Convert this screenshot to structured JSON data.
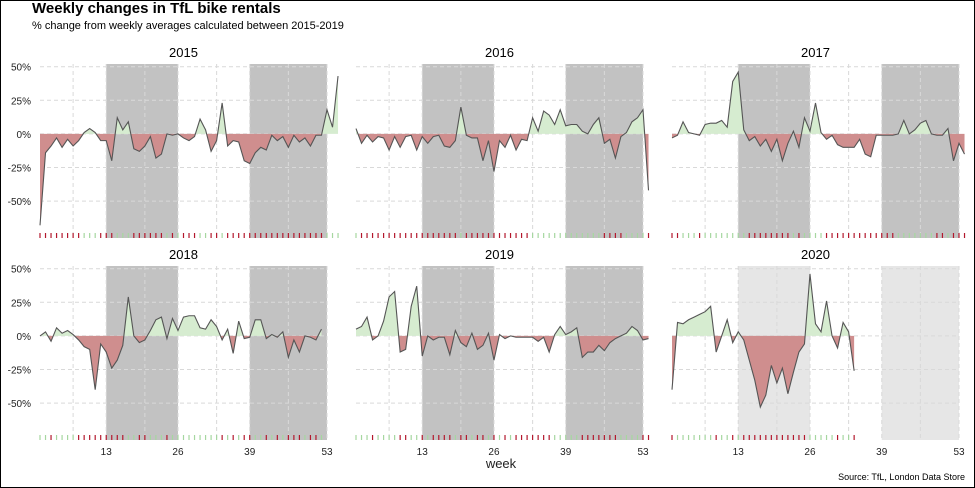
{
  "title": "Weekly changes in TfL bike rentals",
  "subtitle": "% change from weekly averages calculated between 2015-2019",
  "caption": "Source: TfL, London Data Store",
  "chart_data": {
    "type": "area",
    "xlabel": "week",
    "ylabel": "",
    "x_ticks": [
      13,
      26,
      39,
      53
    ],
    "y_ticks": [
      50,
      25,
      0,
      -25,
      -50
    ],
    "y_tick_labels": [
      "50%",
      "25%",
      "0%",
      "-25%",
      "-50%"
    ],
    "xlim": [
      1,
      53
    ],
    "ylim": [
      -70,
      52
    ],
    "grid": true,
    "shaded_week_ranges": [
      [
        13,
        26
      ],
      [
        39,
        53
      ]
    ],
    "colors": {
      "positive_fill": "#d6ecd0",
      "negative_fill": "#cf8e8e",
      "line": "#555555",
      "shade_dark": "#c2c2c2",
      "shade_light": "#e6e6e6",
      "rug_positive": "#a6d7a0",
      "rug_negative": "#b3182d",
      "grid": "#d9d9d9"
    },
    "panels": [
      {
        "year": "2015",
        "shade": "dark",
        "values": [
          -68,
          -14,
          -9,
          -3,
          -10,
          -4,
          -9,
          -5,
          1,
          4,
          1,
          -5,
          -5,
          -20,
          12,
          3,
          9,
          -11,
          -13,
          -9,
          -2,
          -18,
          -15,
          0,
          -1,
          0,
          -3,
          -5,
          -2,
          11,
          3,
          -13,
          -5,
          23,
          -9,
          -5,
          -6,
          -20,
          -22,
          -14,
          -10,
          -12,
          -1,
          -5,
          -2,
          -10,
          -1,
          -6,
          -3,
          -9,
          -1,
          -1,
          18,
          5,
          43
        ]
      },
      {
        "year": "2016",
        "shade": "dark",
        "values": [
          4,
          -7,
          -1,
          -6,
          -2,
          -3,
          -12,
          -2,
          -10,
          -2,
          -1,
          -12,
          -2,
          -7,
          -2,
          -1,
          -9,
          -10,
          -5,
          20,
          -1,
          -3,
          -3,
          -20,
          -5,
          -28,
          -5,
          -10,
          -1,
          -12,
          -4,
          -5,
          12,
          2,
          17,
          14,
          7,
          18,
          6,
          7,
          7,
          2,
          0,
          7,
          12,
          -7,
          -4,
          -18,
          -2,
          1,
          9,
          12,
          18,
          -42
        ]
      },
      {
        "year": "2017",
        "shade": "dark",
        "values": [
          -3,
          -1,
          9,
          1,
          0,
          -1,
          7,
          8,
          8,
          10,
          5,
          39,
          46,
          3,
          -5,
          -2,
          -9,
          -4,
          -13,
          -4,
          -20,
          -7,
          2,
          -10,
          12,
          2,
          23,
          1,
          -4,
          -1,
          -8,
          -10,
          -10,
          -10,
          -4,
          -15,
          -17,
          -1,
          -1,
          -1,
          -1,
          0,
          10,
          0,
          3,
          8,
          10,
          0,
          -1,
          -1,
          4,
          -20,
          -7,
          -15
        ]
      },
      {
        "year": "2018",
        "shade": "dark",
        "values": [
          0,
          3,
          -4,
          6,
          2,
          4,
          1,
          -3,
          -8,
          -10,
          -40,
          -6,
          -12,
          -24,
          -18,
          -7,
          29,
          0,
          -5,
          -3,
          4,
          12,
          14,
          -2,
          13,
          4,
          14,
          15,
          15,
          6,
          5,
          12,
          7,
          -3,
          5,
          -13,
          11,
          -2,
          -1,
          12,
          12,
          -2,
          1,
          -1,
          3,
          -16,
          -3,
          -12,
          0,
          -1,
          -3,
          5
        ]
      },
      {
        "year": "2019",
        "shade": "dark",
        "values": [
          5,
          7,
          14,
          -3,
          0,
          11,
          29,
          33,
          -12,
          -10,
          22,
          37,
          -15,
          0,
          -3,
          -1,
          -1,
          -14,
          4,
          -5,
          -8,
          2,
          -10,
          -7,
          2,
          -18,
          1,
          -2,
          0,
          -1,
          -1,
          -1,
          -1,
          -4,
          -1,
          -12,
          1,
          7,
          1,
          3,
          6,
          -16,
          -12,
          -12,
          -7,
          -11,
          -5,
          -2,
          0,
          2,
          7,
          4,
          -3,
          -2
        ]
      },
      {
        "year": "2020",
        "shade": "light",
        "values": [
          -40,
          10,
          9,
          12,
          14,
          16,
          18,
          22,
          -12,
          0,
          12,
          -5,
          3,
          -3,
          -18,
          -33,
          -53,
          -44,
          -22,
          -35,
          -24,
          -43,
          -27,
          -12,
          -6,
          46,
          9,
          3,
          26,
          0,
          -9,
          10,
          3,
          -26
        ]
      }
    ]
  }
}
